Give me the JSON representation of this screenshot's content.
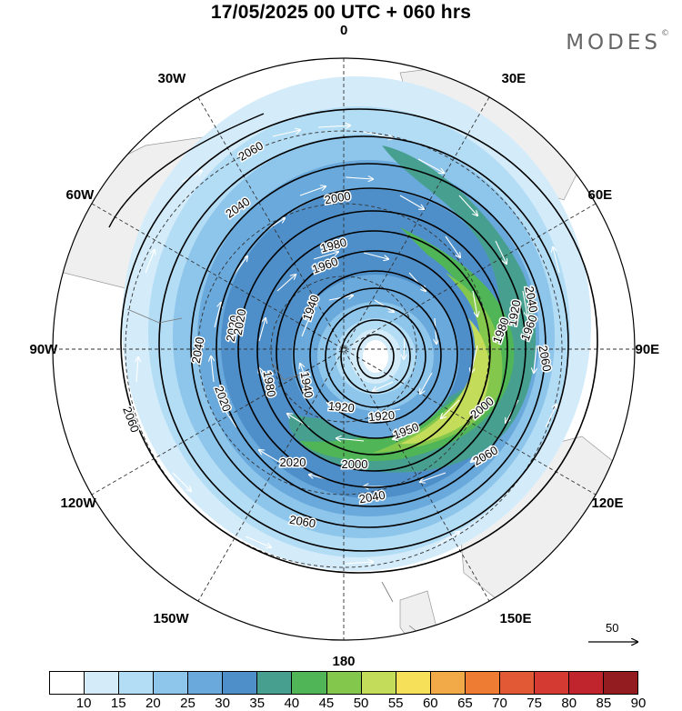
{
  "title": "17/05/2025  00 UTC  + 060 hrs",
  "logo": "MODES",
  "logo_mark": "©",
  "longitude_labels": [
    "0",
    "30E",
    "60E",
    "90E",
    "120E",
    "150E",
    "180",
    "150W",
    "120W",
    "90W",
    "60W",
    "30W"
  ],
  "reference_vector": {
    "label": "50"
  },
  "colorbar": {
    "levels": [
      "10",
      "15",
      "20",
      "25",
      "30",
      "35",
      "40",
      "45",
      "50",
      "55",
      "60",
      "65",
      "70",
      "75",
      "80",
      "85",
      "90"
    ],
    "colors": [
      "#ffffff",
      "#d4ecfa",
      "#b3dcf5",
      "#8ec5ea",
      "#69a9dc",
      "#4f8fc9",
      "#47a08f",
      "#4fb557",
      "#84c74d",
      "#c3dc5a",
      "#f6e05a",
      "#f2aa48",
      "#ee7c33",
      "#e25a35",
      "#d43a32",
      "#c0242c",
      "#921c1f"
    ]
  },
  "contours": [
    {
      "label": "2060"
    },
    {
      "label": "2040"
    },
    {
      "label": "2020"
    },
    {
      "label": "2000"
    },
    {
      "label": "1980"
    },
    {
      "label": "1960"
    },
    {
      "label": "1940"
    },
    {
      "label": "1920"
    },
    {
      "label": "2060"
    },
    {
      "label": "2040"
    },
    {
      "label": "2020"
    },
    {
      "label": "1980"
    },
    {
      "label": "1940"
    },
    {
      "label": "1920"
    },
    {
      "label": "1950"
    },
    {
      "label": "2000"
    },
    {
      "label": "2060"
    },
    {
      "label": "2040"
    },
    {
      "label": "2060"
    },
    {
      "label": "2000"
    },
    {
      "label": "2020"
    },
    {
      "label": "1960"
    },
    {
      "label": "1920"
    },
    {
      "label": "2040"
    },
    {
      "label": "2060"
    },
    {
      "label": "1980"
    },
    {
      "label": "2020"
    }
  ]
}
